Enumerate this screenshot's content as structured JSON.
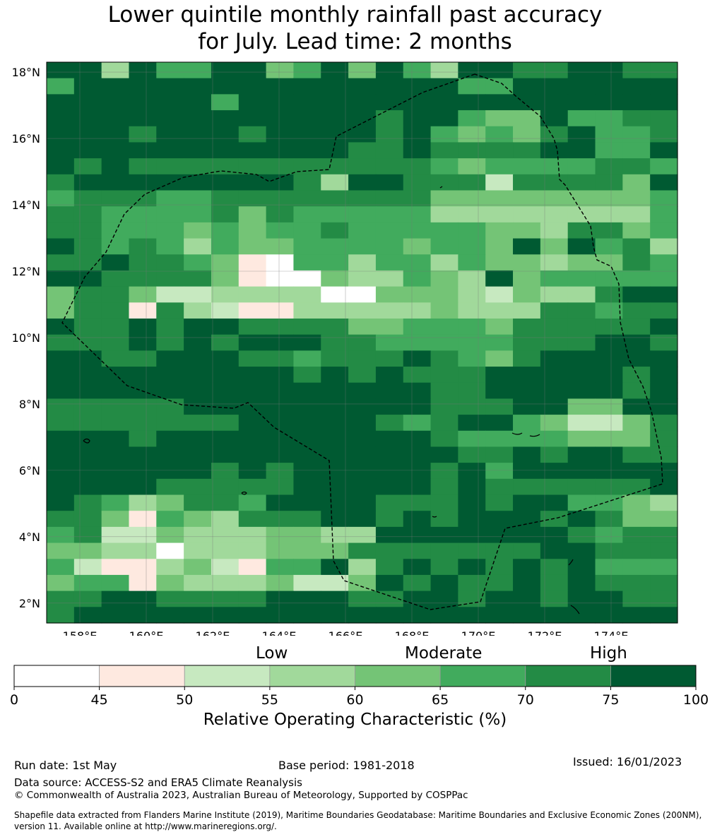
{
  "title": {
    "line1": "Lower quintile monthly rainfall past accuracy",
    "line2": "for July. Lead time: 2 months"
  },
  "map": {
    "lat_ticks": [
      "18°N",
      "16°N",
      "14°N",
      "12°N",
      "10°N",
      "8°N",
      "6°N",
      "4°N",
      "2°N"
    ],
    "lon_ticks": [
      "158°E",
      "160°E",
      "162°E",
      "164°E",
      "166°E",
      "168°E",
      "170°E",
      "172°E",
      "174°E"
    ],
    "lat_values": [
      18,
      16,
      14,
      12,
      10,
      8,
      6,
      4,
      2
    ],
    "lon_values": [
      158,
      160,
      162,
      164,
      166,
      168,
      170,
      172,
      174
    ],
    "extent": {
      "lon_min": 157,
      "lon_max": 176,
      "lat_min": 1.4,
      "lat_max": 18.3
    },
    "grid_rows": [
      "77375577457475377667766",
      "57777777777777755777777",
      "77777757777777777777777",
      "77777777777767754475566",
      "77767776777767545467556",
      "77777777777667666677557",
      "76766666666666545555665",
      "67777777763776662666647",
      "56665566666666444444445",
      "66555564655555333333335",
      "66555454556555554436645",
      "76565354455554554747563",
      "66766541055355354434465",
      "77666641004335437455555",
      "46642233330044432433677",
      "46616321133333433366566",
      "76676776666445554666667",
      "66676767776655555666776",
      "77667776656667654677777",
      "77777777767676667777767",
      "77777777777777667777767",
      "66666777777777666774477",
      "66666667777765677542246",
      "77767777777777655554446",
      "77777777777777766767766",
      "77777767677777675777777",
      "77776666677777676666667",
      "76534665777766676775543",
      "66415436667767677767644",
      "56224333443377777776566",
      "44330333444666666677666",
      "52113421557367676767555",
      "45514333422476766767666",
      "66776666777667767767766",
      "67777777777777777777777"
    ]
  },
  "colorbar": {
    "categories": [
      "Low",
      "Moderate",
      "High"
    ],
    "ticks": [
      "0",
      "45",
      "50",
      "55",
      "60",
      "65",
      "70",
      "75",
      "100"
    ],
    "colors": [
      "#ffffff",
      "#fee9e0",
      "#c7e9c0",
      "#a1d99b",
      "#74c476",
      "#41ab5d",
      "#238b45",
      "#005a32"
    ],
    "axis_label": "Relative Operating Characteristic (%)"
  },
  "footer": {
    "run_date": "Run date: 1st May",
    "base_period": "Base period: 1981-2018",
    "issued": "Issued: 16/01/2023",
    "data_source": "Data source: ACCESS-S2 and ERA5 Climate Reanalysis",
    "copyright": "© Commonwealth of Australia 2023, Australian Bureau of Meteorology, Supported by COSPPac",
    "shapefile_line1": "Shapefile data extracted from Flanders Marine Institute (2019), Maritime Boundaries Geodatabase: Maritime Boundaries and Exclusive Economic Zones (200NM),",
    "shapefile_line2": "version 11. Available online at http://www.marineregions.org/."
  }
}
